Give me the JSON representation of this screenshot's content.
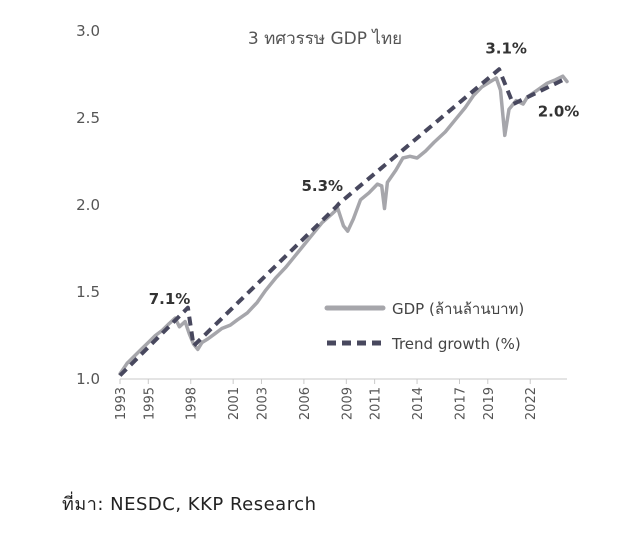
{
  "chart_data": {
    "type": "line",
    "title": "3 ทศวรรษ GDP ไทย",
    "x_ticks": [
      "1993",
      "1995",
      "1998",
      "2001",
      "2003",
      "2006",
      "2009",
      "2011",
      "2014",
      "2017",
      "2019",
      "2022"
    ],
    "ylim": [
      1.0,
      3.0
    ],
    "y_ticks": [
      "1.0",
      "1.5",
      "2.0",
      "2.5",
      "3.0"
    ],
    "grid": false,
    "legend_position": "bottom-right",
    "series": [
      {
        "name": "GDP (ล้านล้านบาท)",
        "color": "#a6a6ab",
        "style": "solid",
        "points": [
          [
            1993.0,
            1.03
          ],
          [
            1993.5,
            1.09
          ],
          [
            1994.0,
            1.13
          ],
          [
            1994.5,
            1.17
          ],
          [
            1995.0,
            1.21
          ],
          [
            1995.5,
            1.25
          ],
          [
            1996.0,
            1.28
          ],
          [
            1996.5,
            1.32
          ],
          [
            1996.9,
            1.35
          ],
          [
            1997.2,
            1.3
          ],
          [
            1997.6,
            1.33
          ],
          [
            1997.9,
            1.26
          ],
          [
            1998.2,
            1.2
          ],
          [
            1998.5,
            1.17
          ],
          [
            1998.8,
            1.21
          ],
          [
            1999.2,
            1.23
          ],
          [
            1999.7,
            1.26
          ],
          [
            2000.2,
            1.29
          ],
          [
            2000.8,
            1.31
          ],
          [
            2001.3,
            1.34
          ],
          [
            2002.0,
            1.38
          ],
          [
            2002.7,
            1.44
          ],
          [
            2003.3,
            1.51
          ],
          [
            2004.0,
            1.58
          ],
          [
            2004.7,
            1.64
          ],
          [
            2005.3,
            1.7
          ],
          [
            2006.0,
            1.77
          ],
          [
            2006.7,
            1.84
          ],
          [
            2007.3,
            1.9
          ],
          [
            2008.0,
            1.95
          ],
          [
            2008.4,
            1.98
          ],
          [
            2008.8,
            1.88
          ],
          [
            2009.1,
            1.85
          ],
          [
            2009.5,
            1.92
          ],
          [
            2010.0,
            2.03
          ],
          [
            2010.6,
            2.07
          ],
          [
            2011.2,
            2.12
          ],
          [
            2011.5,
            2.11
          ],
          [
            2011.7,
            1.98
          ],
          [
            2011.9,
            2.13
          ],
          [
            2012.5,
            2.2
          ],
          [
            2013.0,
            2.27
          ],
          [
            2013.5,
            2.28
          ],
          [
            2014.0,
            2.27
          ],
          [
            2014.6,
            2.31
          ],
          [
            2015.2,
            2.36
          ],
          [
            2016.0,
            2.42
          ],
          [
            2016.7,
            2.49
          ],
          [
            2017.4,
            2.56
          ],
          [
            2018.0,
            2.63
          ],
          [
            2018.6,
            2.68
          ],
          [
            2019.2,
            2.71
          ],
          [
            2019.6,
            2.73
          ],
          [
            2019.9,
            2.66
          ],
          [
            2020.2,
            2.4
          ],
          [
            2020.5,
            2.55
          ],
          [
            2021.0,
            2.6
          ],
          [
            2021.5,
            2.58
          ],
          [
            2021.8,
            2.62
          ],
          [
            2022.5,
            2.66
          ],
          [
            2023.2,
            2.7
          ],
          [
            2023.8,
            2.72
          ],
          [
            2024.3,
            2.74
          ],
          [
            2024.6,
            2.71
          ]
        ]
      },
      {
        "name": "Trend growth (%)",
        "color": "#48485e",
        "style": "dashed",
        "points": [
          [
            1993.0,
            1.02
          ],
          [
            1997.8,
            1.41
          ],
          [
            1998.2,
            1.19
          ],
          [
            2008.3,
            1.99
          ],
          [
            2008.5,
            2.01
          ],
          [
            2019.8,
            2.78
          ],
          [
            2020.8,
            2.58
          ],
          [
            2024.6,
            2.73
          ]
        ]
      }
    ],
    "annotations": [
      {
        "text": "7.1%",
        "x": 1996.5,
        "y": 1.43
      },
      {
        "text": "5.3%",
        "x": 2007.3,
        "y": 2.08
      },
      {
        "text": "3.1%",
        "x": 2020.3,
        "y": 2.87
      },
      {
        "text": "2.0%",
        "x": 2024.0,
        "y": 2.51
      }
    ]
  },
  "source_text": "ที่มา: NESDC, KKP Research"
}
